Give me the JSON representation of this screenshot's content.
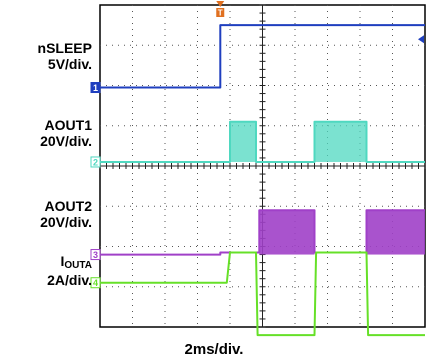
{
  "channels": [
    {
      "id": "1",
      "name": "nSLEEP",
      "scale": "5V/div.",
      "color": "#1f3fbf"
    },
    {
      "id": "2",
      "name": "AOUT1",
      "scale": "20V/div.",
      "color": "#4fd8c0"
    },
    {
      "id": "3",
      "name": "AOUT2",
      "scale": "20V/div.",
      "color": "#a040c8"
    },
    {
      "id": "4",
      "name_main": "I",
      "name_sub": "OUTA",
      "scale": "2A/div.",
      "color": "#66e028"
    }
  ],
  "trigger_marker": "T",
  "timebase_label": "2ms/div.",
  "chart_data": {
    "type": "line",
    "x_unit": "div",
    "x_range": [
      0,
      10
    ],
    "y_range": [
      0,
      8
    ],
    "grid": true,
    "series": [
      {
        "name": "nSLEEP",
        "points": [
          [
            0,
            5.95
          ],
          [
            3.7,
            5.95
          ],
          [
            3.7,
            7.5
          ],
          [
            10,
            7.5
          ]
        ]
      },
      {
        "name": "AOUT1",
        "points": [
          [
            0,
            4.1
          ],
          [
            4.0,
            4.1
          ],
          [
            4.0,
            5.1
          ],
          [
            4.8,
            5.1
          ],
          [
            4.8,
            4.1
          ],
          [
            6.6,
            4.1
          ],
          [
            6.6,
            5.1
          ],
          [
            8.2,
            5.1
          ],
          [
            8.2,
            4.1
          ],
          [
            10,
            4.1
          ]
        ]
      },
      {
        "name": "AOUT2",
        "points": [
          [
            0,
            1.8
          ],
          [
            3.7,
            1.8
          ],
          [
            3.7,
            1.85
          ],
          [
            4.9,
            1.85
          ],
          [
            4.9,
            2.9
          ],
          [
            6.6,
            2.9
          ],
          [
            6.6,
            1.85
          ],
          [
            8.2,
            1.85
          ],
          [
            8.2,
            2.9
          ],
          [
            10,
            2.9
          ]
        ]
      },
      {
        "name": "IOUTA",
        "points": [
          [
            0,
            1.1
          ],
          [
            3.9,
            1.1
          ],
          [
            4.0,
            1.85
          ],
          [
            4.8,
            1.85
          ],
          [
            4.85,
            -0.2
          ],
          [
            6.6,
            -0.2
          ],
          [
            6.65,
            1.85
          ],
          [
            8.2,
            1.85
          ],
          [
            8.25,
            -0.2
          ],
          [
            10,
            -0.2
          ]
        ]
      }
    ]
  }
}
